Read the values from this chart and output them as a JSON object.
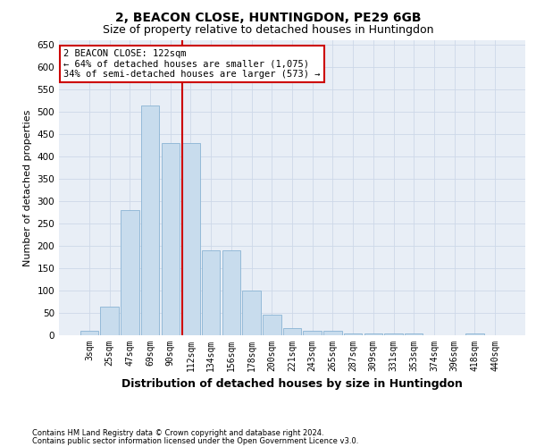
{
  "title": "2, BEACON CLOSE, HUNTINGDON, PE29 6GB",
  "subtitle": "Size of property relative to detached houses in Huntingdon",
  "xlabel": "Distribution of detached houses by size in Huntingdon",
  "ylabel": "Number of detached properties",
  "footer_line1": "Contains HM Land Registry data © Crown copyright and database right 2024.",
  "footer_line2": "Contains public sector information licensed under the Open Government Licence v3.0.",
  "categories": [
    "3sqm",
    "25sqm",
    "47sqm",
    "69sqm",
    "90sqm",
    "112sqm",
    "134sqm",
    "156sqm",
    "178sqm",
    "200sqm",
    "221sqm",
    "243sqm",
    "265sqm",
    "287sqm",
    "309sqm",
    "331sqm",
    "353sqm",
    "374sqm",
    "396sqm",
    "418sqm",
    "440sqm"
  ],
  "values": [
    10,
    65,
    280,
    515,
    430,
    430,
    190,
    190,
    100,
    46,
    16,
    10,
    10,
    5,
    5,
    4,
    4,
    0,
    0,
    4,
    0
  ],
  "bar_color": "#c8dced",
  "bar_edge_color": "#8ab4d4",
  "annotation_line1": "2 BEACON CLOSE: 122sqm",
  "annotation_line2": "← 64% of detached houses are smaller (1,075)",
  "annotation_line3": "34% of semi-detached houses are larger (573) →",
  "annotation_box_facecolor": "#ffffff",
  "annotation_box_edgecolor": "#cc0000",
  "vline_color": "#cc0000",
  "vline_pos": 4.575,
  "ylim": [
    0,
    660
  ],
  "yticks": [
    0,
    50,
    100,
    150,
    200,
    250,
    300,
    350,
    400,
    450,
    500,
    550,
    600,
    650
  ],
  "grid_color": "#cdd8e8",
  "bg_color": "#e8eef6",
  "title_fontsize": 10,
  "subtitle_fontsize": 9,
  "ylabel_fontsize": 8,
  "xlabel_fontsize": 9,
  "tick_fontsize": 7,
  "annot_fontsize": 7.5,
  "footer_fontsize": 6
}
